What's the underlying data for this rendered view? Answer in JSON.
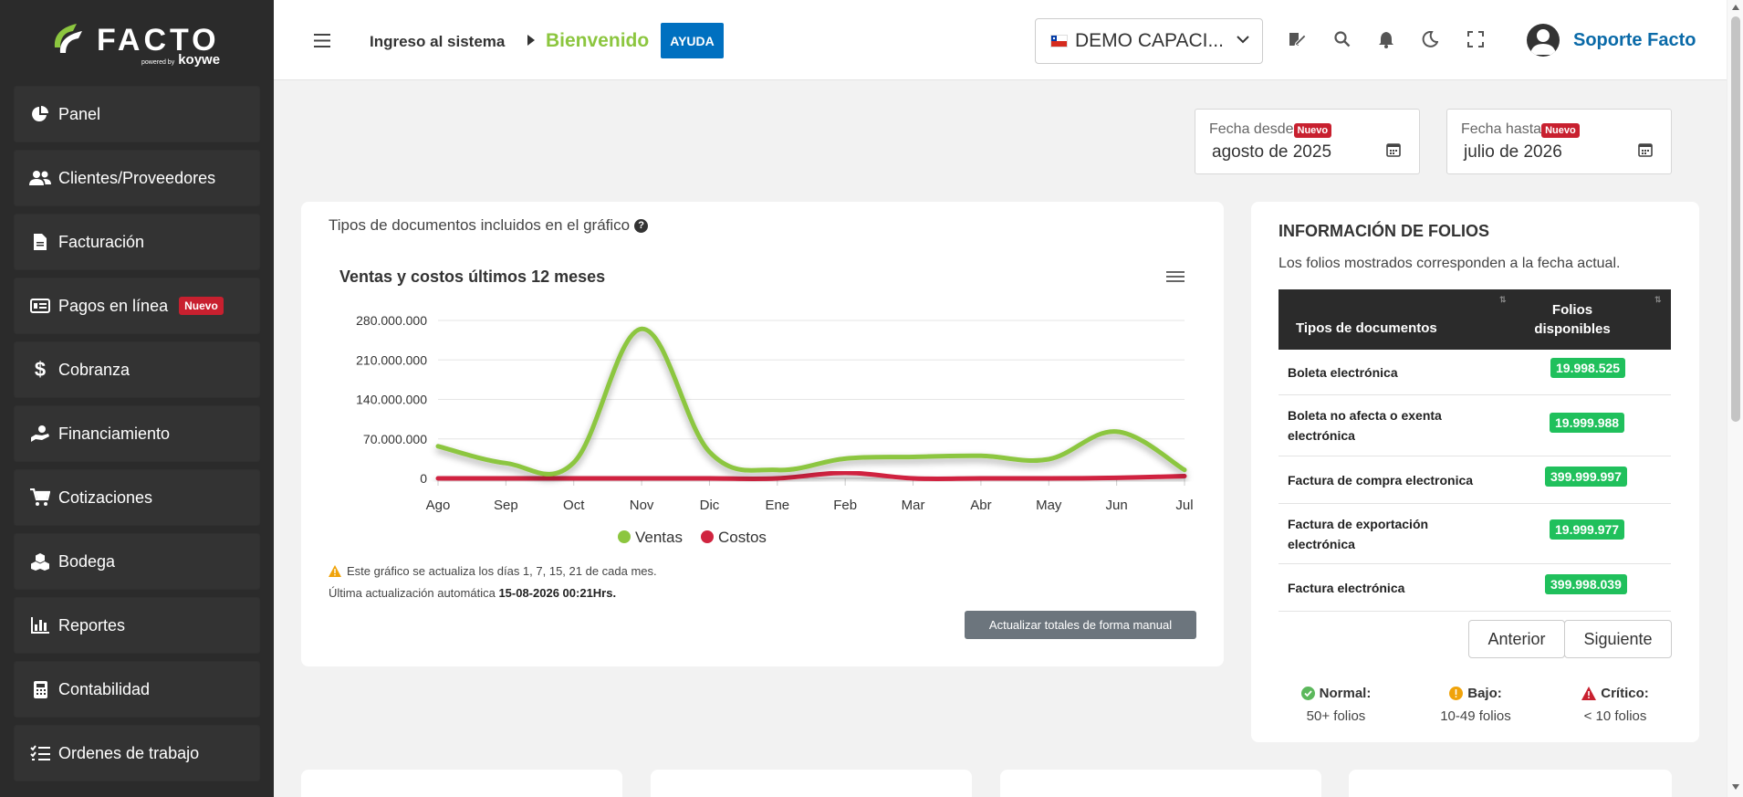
{
  "brand": {
    "name": "FACTO",
    "powered": "powered by",
    "partner": "koywe"
  },
  "sidebar": {
    "items": [
      {
        "label": "Panel",
        "icon": "pie-chart-icon"
      },
      {
        "label": "Clientes/Proveedores",
        "icon": "users-icon"
      },
      {
        "label": "Facturación",
        "icon": "document-icon"
      },
      {
        "label": "Pagos en línea",
        "icon": "money-bill-icon",
        "badge": "Nuevo"
      },
      {
        "label": "Cobranza",
        "icon": "dollar-icon"
      },
      {
        "label": "Financiamiento",
        "icon": "hand-coin-icon"
      },
      {
        "label": "Cotizaciones",
        "icon": "cart-icon"
      },
      {
        "label": "Bodega",
        "icon": "boxes-icon"
      },
      {
        "label": "Reportes",
        "icon": "bar-chart-icon"
      },
      {
        "label": "Contabilidad",
        "icon": "calculator-icon"
      },
      {
        "label": "Ordenes de trabajo",
        "icon": "task-list-icon"
      }
    ]
  },
  "header": {
    "breadcrumb_root": "Ingreso al sistema",
    "breadcrumb_current": "Bienvenido",
    "help_label": "AYUDA",
    "company": "DEMO CAPACI...",
    "user_name": "Soporte Facto"
  },
  "filters": {
    "from_label": "Fecha desde",
    "from_badge": "Nuevo",
    "from_value": "agosto de 2025",
    "to_label": "Fecha hasta",
    "to_badge": "Nuevo",
    "to_value": "julio de 2026"
  },
  "chart_card": {
    "doc_types_label": "Tipos de documentos incluidos en el gráfico",
    "help_mark": "?",
    "update_note": "Este gráfico se actualiza los días 1, 7, 15, 21 de cada mes.",
    "last_update_prefix": "Última actualización automática",
    "last_update_value": "15-08-2026 00:21Hrs.",
    "manual_button": "Actualizar totales de forma manual"
  },
  "chart_data": {
    "type": "line",
    "title": "Ventas y costos últimos 12 meses",
    "categories": [
      "Ago",
      "Sep",
      "Oct",
      "Nov",
      "Dic",
      "Ene",
      "Feb",
      "Mar",
      "Abr",
      "May",
      "Jun",
      "Jul"
    ],
    "ylim": [
      0,
      280000000
    ],
    "yticks": [
      0,
      70000000,
      140000000,
      210000000,
      280000000
    ],
    "ytick_labels": [
      "0",
      "70.000.000",
      "140.000.000",
      "210.000.000",
      "280.000.000"
    ],
    "legend_position": "bottom",
    "grid": true,
    "series": [
      {
        "name": "Ventas",
        "color": "#8cc63f",
        "values": [
          57000000,
          27000000,
          28000000,
          265000000,
          47000000,
          15000000,
          35000000,
          38000000,
          40000000,
          34000000,
          83000000,
          15000000
        ]
      },
      {
        "name": "Costos",
        "color": "#d0243f",
        "values": [
          0,
          0,
          0,
          0,
          0,
          0,
          10000000,
          0,
          0,
          0,
          1000000,
          4000000
        ]
      }
    ]
  },
  "folios": {
    "title": "INFORMACIÓN DE FOLIOS",
    "description": "Los folios mostrados corresponden a la fecha actual.",
    "col_type": "Tipos de documentos",
    "col_available": "Folios disponibles",
    "rows": [
      {
        "name": "Boleta electrónica",
        "value": "19.998.525"
      },
      {
        "name": "Boleta no afecta o exenta electrónica",
        "value": "19.999.988"
      },
      {
        "name": "Factura de compra electronica",
        "value": "399.999.997"
      },
      {
        "name": "Factura de exportación electrónica",
        "value": "19.999.977"
      },
      {
        "name": "Factura electrónica",
        "value": "399.998.039"
      }
    ],
    "prev_label": "Anterior",
    "next_label": "Siguiente",
    "legend": [
      {
        "title": "Normal:",
        "desc": "50+ folios",
        "color": "#5cb85c"
      },
      {
        "title": "Bajo:",
        "desc": "10-49 folios",
        "color": "#f0a30a"
      },
      {
        "title": "Crítico:",
        "desc": "< 10 folios",
        "color": "#c8202f"
      }
    ]
  },
  "colors": {
    "sidebar_bg": "#2b2b2b",
    "accent_green": "#8cc63f",
    "accent_blue": "#0070c0",
    "badge_red": "#c8202f",
    "folio_green": "#20c05c"
  }
}
